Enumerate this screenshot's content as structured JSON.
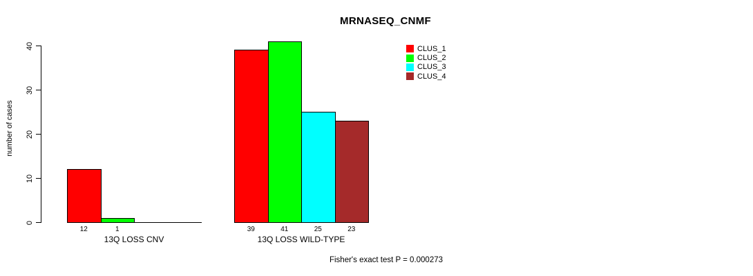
{
  "title": "MRNASEQ_CNMF",
  "annotation": "Fisher's exact test P = 0.000273",
  "colors": {
    "background": "#ffffff",
    "axis": "#000000",
    "text": "#000000",
    "clus_1": "#ff0000",
    "clus_2": "#00ff00",
    "clus_3": "#00ffff",
    "clus_4": "#a52a2a"
  },
  "chart_data": {
    "type": "bar",
    "title": "MRNASEQ_CNMF",
    "xlabel": "",
    "ylabel": "number of cases",
    "ylim": [
      0,
      40
    ],
    "yticks": [
      0,
      10,
      20,
      30,
      40
    ],
    "grid": false,
    "legend_position": "top-right",
    "legend_entries": [
      "CLUS_1",
      "CLUS_2",
      "CLUS_3",
      "CLUS_4"
    ],
    "categories": [
      "13Q LOSS CNV",
      "13Q LOSS WILD-TYPE"
    ],
    "series": [
      {
        "name": "CLUS_1",
        "color": "#ff0000",
        "values": [
          12,
          39
        ]
      },
      {
        "name": "CLUS_2",
        "color": "#00ff00",
        "values": [
          1,
          41
        ]
      },
      {
        "name": "CLUS_3",
        "color": "#00ffff",
        "values": [
          0,
          25
        ]
      },
      {
        "name": "CLUS_4",
        "color": "#a52a2a",
        "values": [
          0,
          23
        ]
      }
    ],
    "bar_value_labels_shown": true,
    "zero_value_labels_hidden": true,
    "annotation": "Fisher's exact test P = 0.000273"
  }
}
